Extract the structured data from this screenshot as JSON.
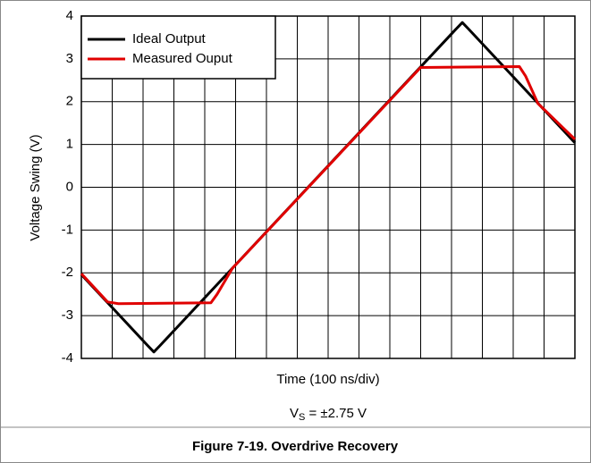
{
  "chart_data": {
    "type": "line",
    "y_label": "Voltage Swing (V)",
    "x_label": "Time (100 ns/div)",
    "annotation": {
      "base": "V",
      "sub": "S",
      "rest": " = ±2.75 V"
    },
    "caption": "Figure 7-19. Overdrive Recovery",
    "xlim": [
      0,
      16
    ],
    "xticks": [
      0,
      1,
      2,
      3,
      4,
      5,
      6,
      7,
      8,
      9,
      10,
      11,
      12,
      13,
      14,
      15,
      16
    ],
    "ylim": [
      -4,
      4
    ],
    "yticks": [
      -4,
      -3,
      -2,
      -1,
      0,
      1,
      2,
      3,
      4
    ],
    "grid": true,
    "legend": "upper left",
    "series": [
      {
        "name": "Ideal Output",
        "color": "#000000",
        "x": [
          0,
          2.15,
          2.35,
          2.55,
          12.15,
          12.35,
          12.55,
          16
        ],
        "values": [
          -2.04,
          -3.7,
          -3.85,
          -3.7,
          3.7,
          3.85,
          3.7,
          1.04
        ]
      },
      {
        "name": "Measured Ouput",
        "color": "#e00000",
        "x": [
          0,
          0.85,
          1.2,
          4.2,
          4.4,
          4.9,
          11.0,
          14.2,
          14.4,
          14.8,
          16
        ],
        "values": [
          -2.02,
          -2.68,
          -2.72,
          -2.7,
          -2.5,
          -1.89,
          2.8,
          2.82,
          2.6,
          1.96,
          1.12
        ]
      }
    ]
  }
}
